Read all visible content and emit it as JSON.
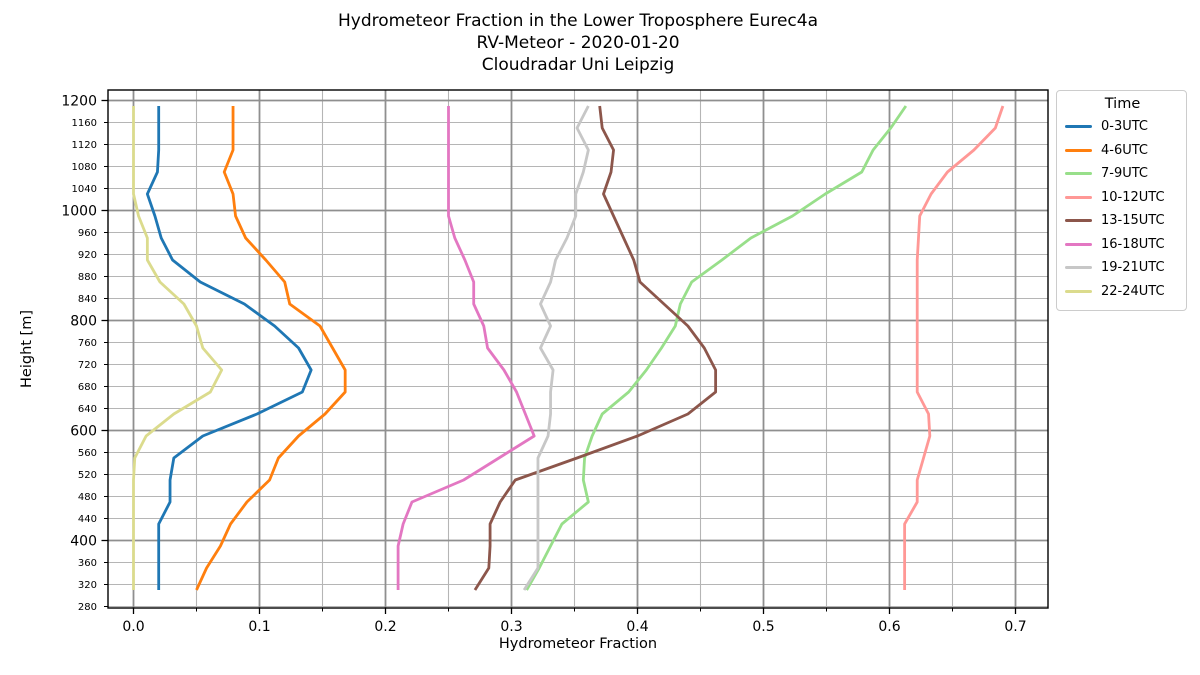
{
  "chart_data": {
    "type": "line",
    "title_lines": [
      "Hydrometeor Fraction in the Lower Troposphere Eurec4a",
      "RV-Meteor - 2020-01-20",
      "Cloudradar Uni Leipzig"
    ],
    "xlabel": "Hydrometeor Fraction",
    "ylabel": "Height [m]",
    "legend_title": "Time",
    "legend_position": "upper right, outside axes",
    "grid": "both major and minor, full box spines",
    "xlim": [
      -0.02,
      0.727
    ],
    "ylim": [
      276,
      1221
    ],
    "x_ticks": {
      "major": [
        0.0,
        0.1,
        0.2,
        0.3,
        0.4,
        0.5,
        0.6,
        0.7
      ],
      "minor": [
        0.05,
        0.15,
        0.25,
        0.35,
        0.45,
        0.55,
        0.65
      ]
    },
    "y_ticks": {
      "major": [
        400,
        600,
        800,
        1000,
        1200
      ],
      "minor": [
        280,
        320,
        360,
        440,
        480,
        520,
        560,
        640,
        680,
        720,
        760,
        840,
        880,
        920,
        960,
        1040,
        1080,
        1120,
        1160
      ]
    },
    "heights_m": [
      310,
      350,
      390,
      430,
      470,
      510,
      550,
      590,
      630,
      670,
      710,
      750,
      790,
      830,
      870,
      910,
      950,
      990,
      1030,
      1070,
      1110,
      1150,
      1190
    ],
    "series": [
      {
        "name": "0-3UTC",
        "color": "#1f77b4",
        "values": [
          0.02,
          0.02,
          0.02,
          0.02,
          0.029,
          0.029,
          0.032,
          0.055,
          0.098,
          0.134,
          0.141,
          0.131,
          0.112,
          0.088,
          0.053,
          0.031,
          0.022,
          0.017,
          0.011,
          0.019,
          0.02,
          0.02,
          0.02
        ]
      },
      {
        "name": "4-6UTC",
        "color": "#ff7f0e",
        "values": [
          0.05,
          0.058,
          0.069,
          0.077,
          0.09,
          0.108,
          0.115,
          0.131,
          0.152,
          0.168,
          0.168,
          0.158,
          0.148,
          0.124,
          0.12,
          0.105,
          0.089,
          0.081,
          0.079,
          0.072,
          0.079,
          0.079,
          0.079
        ]
      },
      {
        "name": "7-9UTC",
        "color": "#98df8a",
        "values": [
          0.312,
          0.322,
          0.331,
          0.34,
          0.361,
          0.357,
          0.358,
          0.364,
          0.372,
          0.393,
          0.407,
          0.419,
          0.43,
          0.434,
          0.443,
          0.467,
          0.49,
          0.523,
          0.549,
          0.578,
          0.587,
          0.601,
          0.613
        ]
      },
      {
        "name": "10-12UTC",
        "color": "#ff9896",
        "values": [
          0.612,
          0.612,
          0.612,
          0.612,
          0.622,
          0.622,
          0.627,
          0.632,
          0.631,
          0.622,
          0.622,
          0.622,
          0.622,
          0.622,
          0.622,
          0.622,
          0.623,
          0.624,
          0.633,
          0.646,
          0.667,
          0.684,
          0.69
        ]
      },
      {
        "name": "13-15UTC",
        "color": "#8c564b",
        "values": [
          0.271,
          0.282,
          0.283,
          0.283,
          0.291,
          0.303,
          0.352,
          0.4,
          0.44,
          0.462,
          0.462,
          0.453,
          0.44,
          0.421,
          0.402,
          0.397,
          0.389,
          0.381,
          0.373,
          0.379,
          0.381,
          0.372,
          0.37
        ]
      },
      {
        "name": "16-18UTC",
        "color": "#e377c2",
        "values": [
          0.21,
          0.21,
          0.21,
          0.214,
          0.221,
          0.262,
          0.29,
          0.318,
          0.311,
          0.304,
          0.294,
          0.281,
          0.278,
          0.27,
          0.27,
          0.263,
          0.255,
          0.25,
          0.25,
          0.25,
          0.25,
          0.25,
          0.25
        ]
      },
      {
        "name": "19-21UTC",
        "color": "#c7c7c7",
        "values": [
          0.31,
          0.321,
          0.321,
          0.321,
          0.321,
          0.321,
          0.321,
          0.329,
          0.331,
          0.331,
          0.333,
          0.323,
          0.331,
          0.323,
          0.331,
          0.335,
          0.344,
          0.351,
          0.351,
          0.357,
          0.361,
          0.352,
          0.361
        ]
      },
      {
        "name": "22-24UTC",
        "color": "#dbdb8d",
        "values": [
          0.0,
          0.0,
          0.0,
          0.0,
          0.0,
          0.0,
          0.001,
          0.01,
          0.032,
          0.061,
          0.07,
          0.055,
          0.05,
          0.04,
          0.021,
          0.011,
          0.011,
          0.004,
          0.0,
          0.0,
          0.0,
          0.0,
          0.0
        ]
      }
    ],
    "style": {
      "major_grid_color": "#8f8f8f",
      "minor_grid_color": "#b5b5b5",
      "spine_color": "#000000",
      "background": "#ffffff"
    }
  }
}
